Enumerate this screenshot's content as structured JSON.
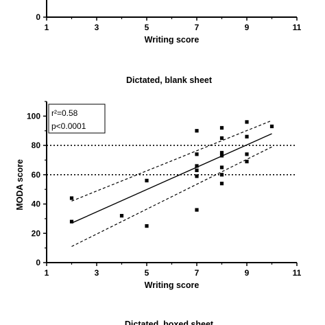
{
  "chart_data": [
    {
      "type": "scatter",
      "title": "",
      "xlabel": "Writing score",
      "ylabel": "",
      "xlim": [
        1,
        11
      ],
      "x_ticks": [
        "1",
        "3",
        "5",
        "7",
        "9",
        "11"
      ],
      "y_ticks": [
        "0"
      ],
      "visible": "bottom portion only (cropped at top of image)"
    },
    {
      "type": "scatter",
      "title": "Dictated, blank sheet",
      "xlabel": "Writing score",
      "ylabel": "MODA score",
      "xlim": [
        1,
        11
      ],
      "ylim": [
        0,
        110
      ],
      "x_ticks": [
        "1",
        "3",
        "5",
        "7",
        "9",
        "11"
      ],
      "y_ticks": [
        "0",
        "20",
        "40",
        "60",
        "80",
        "100"
      ],
      "grid": false,
      "annotation": {
        "r2": "r²=0.58",
        "p": "p<0.0001"
      },
      "reference_lines_y": [
        60,
        80
      ],
      "regression": {
        "fit": [
          [
            2,
            27
          ],
          [
            10,
            88
          ]
        ],
        "ci_upper": [
          [
            2,
            42
          ],
          [
            10,
            97
          ]
        ],
        "ci_lower": [
          [
            2,
            11
          ],
          [
            10,
            79
          ]
        ]
      },
      "points": [
        {
          "x": 2,
          "y": 28
        },
        {
          "x": 2,
          "y": 44
        },
        {
          "x": 4,
          "y": 32
        },
        {
          "x": 5,
          "y": 25
        },
        {
          "x": 5,
          "y": 56
        },
        {
          "x": 7,
          "y": 90
        },
        {
          "x": 7,
          "y": 74
        },
        {
          "x": 7,
          "y": 66
        },
        {
          "x": 7,
          "y": 63
        },
        {
          "x": 7,
          "y": 59
        },
        {
          "x": 7,
          "y": 36
        },
        {
          "x": 8,
          "y": 92
        },
        {
          "x": 8,
          "y": 85
        },
        {
          "x": 8,
          "y": 75
        },
        {
          "x": 8,
          "y": 73
        },
        {
          "x": 8,
          "y": 65
        },
        {
          "x": 8,
          "y": 60
        },
        {
          "x": 8,
          "y": 54
        },
        {
          "x": 9,
          "y": 96
        },
        {
          "x": 9,
          "y": 86
        },
        {
          "x": 9,
          "y": 74
        },
        {
          "x": 9,
          "y": 69
        },
        {
          "x": 10,
          "y": 93
        }
      ]
    },
    {
      "type": "scatter",
      "title": "Dictated, boxed sheet",
      "visible": "title only (cropped at bottom of image)"
    }
  ]
}
